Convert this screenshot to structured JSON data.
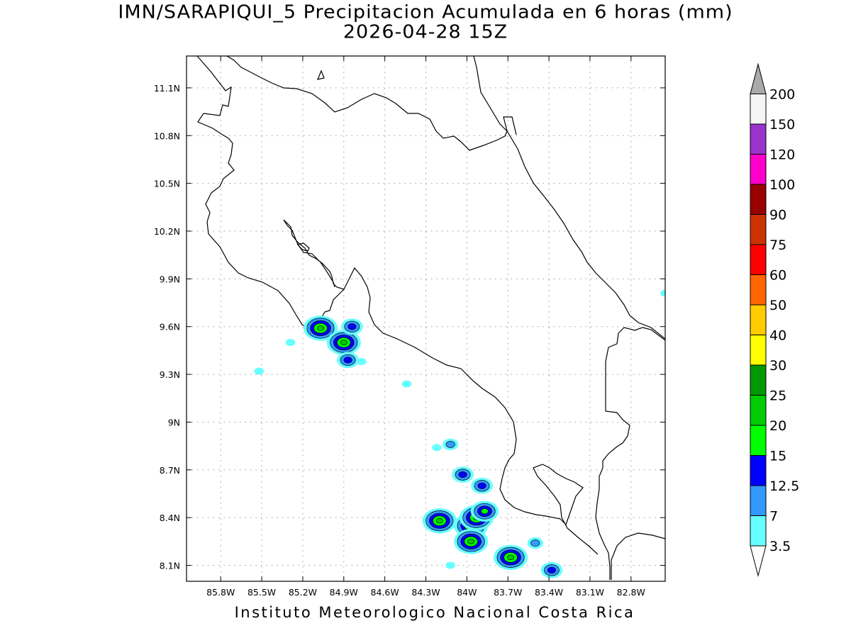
{
  "title_line1": "IMN/SARAPIQUI_5 Precipitacion Acumulada en 6 horas (mm)",
  "title_line2": "2026-04-28 15Z",
  "footer": "Instituto Meteorologico Nacional Costa Rica",
  "map": {
    "lon_range": [
      -86.05,
      -82.55
    ],
    "lat_range": [
      8.0,
      11.3
    ],
    "x_tick_labels": [
      "85.8W",
      "85.5W",
      "85.2W",
      "84.9W",
      "84.6W",
      "84.3W",
      "84W",
      "83.7W",
      "83.4W",
      "83.1W",
      "82.8W"
    ],
    "y_tick_labels": [
      "11.1N",
      "10.8N",
      "10.5N",
      "10.2N",
      "9.9N",
      "9.6N",
      "9.3N",
      "9N",
      "8.7N",
      "8.4N",
      "8.1N"
    ],
    "grid": "dotted",
    "coastline_color": "#000000"
  },
  "colorbar": {
    "labels": [
      "3.5",
      "7",
      "12.5",
      "15",
      "20",
      "25",
      "30",
      "40",
      "50",
      "60",
      "75",
      "90",
      "100",
      "120",
      "150",
      "200"
    ],
    "colors": [
      "#66ffff",
      "#3399ff",
      "#0000ff",
      "#00ff00",
      "#00cc00",
      "#009900",
      "#ffff00",
      "#ffcc00",
      "#ff6600",
      "#ff0000",
      "#cc3300",
      "#990000",
      "#ff00cc",
      "#9933cc",
      "#f5f5f5"
    ],
    "over_color": "#aaaaaa",
    "under_color": "#ffffff"
  },
  "precip_cells": [
    {
      "lon": -85.07,
      "lat": 9.59,
      "max": "20"
    },
    {
      "lon": -84.9,
      "lat": 9.5,
      "max": "20"
    },
    {
      "lon": -84.84,
      "lat": 9.6,
      "max": "12.5"
    },
    {
      "lon": -84.87,
      "lat": 9.39,
      "max": "12.5"
    },
    {
      "lon": -84.77,
      "lat": 9.38,
      "max": "3.5"
    },
    {
      "lon": -85.29,
      "lat": 9.5,
      "max": "3.5"
    },
    {
      "lon": -85.52,
      "lat": 9.32,
      "max": "3.5"
    },
    {
      "lon": -84.44,
      "lat": 9.24,
      "max": "3.5"
    },
    {
      "lon": -84.2,
      "lat": 8.38,
      "max": "20"
    },
    {
      "lon": -83.97,
      "lat": 8.35,
      "max": "20"
    },
    {
      "lon": -83.93,
      "lat": 8.4,
      "max": "20"
    },
    {
      "lon": -83.97,
      "lat": 8.25,
      "max": "20"
    },
    {
      "lon": -83.87,
      "lat": 8.44,
      "max": "15"
    },
    {
      "lon": -83.68,
      "lat": 8.15,
      "max": "20"
    },
    {
      "lon": -83.38,
      "lat": 8.07,
      "max": "12.5"
    },
    {
      "lon": -84.03,
      "lat": 8.67,
      "max": "12.5"
    },
    {
      "lon": -83.89,
      "lat": 8.6,
      "max": "12.5"
    },
    {
      "lon": -84.12,
      "lat": 8.86,
      "max": "7"
    },
    {
      "lon": -84.22,
      "lat": 8.84,
      "max": "3.5"
    },
    {
      "lon": -83.5,
      "lat": 8.24,
      "max": "7"
    },
    {
      "lon": -84.12,
      "lat": 8.1,
      "max": "3.5"
    },
    {
      "lon": -82.55,
      "lat": 9.81,
      "max": "3.5"
    }
  ]
}
